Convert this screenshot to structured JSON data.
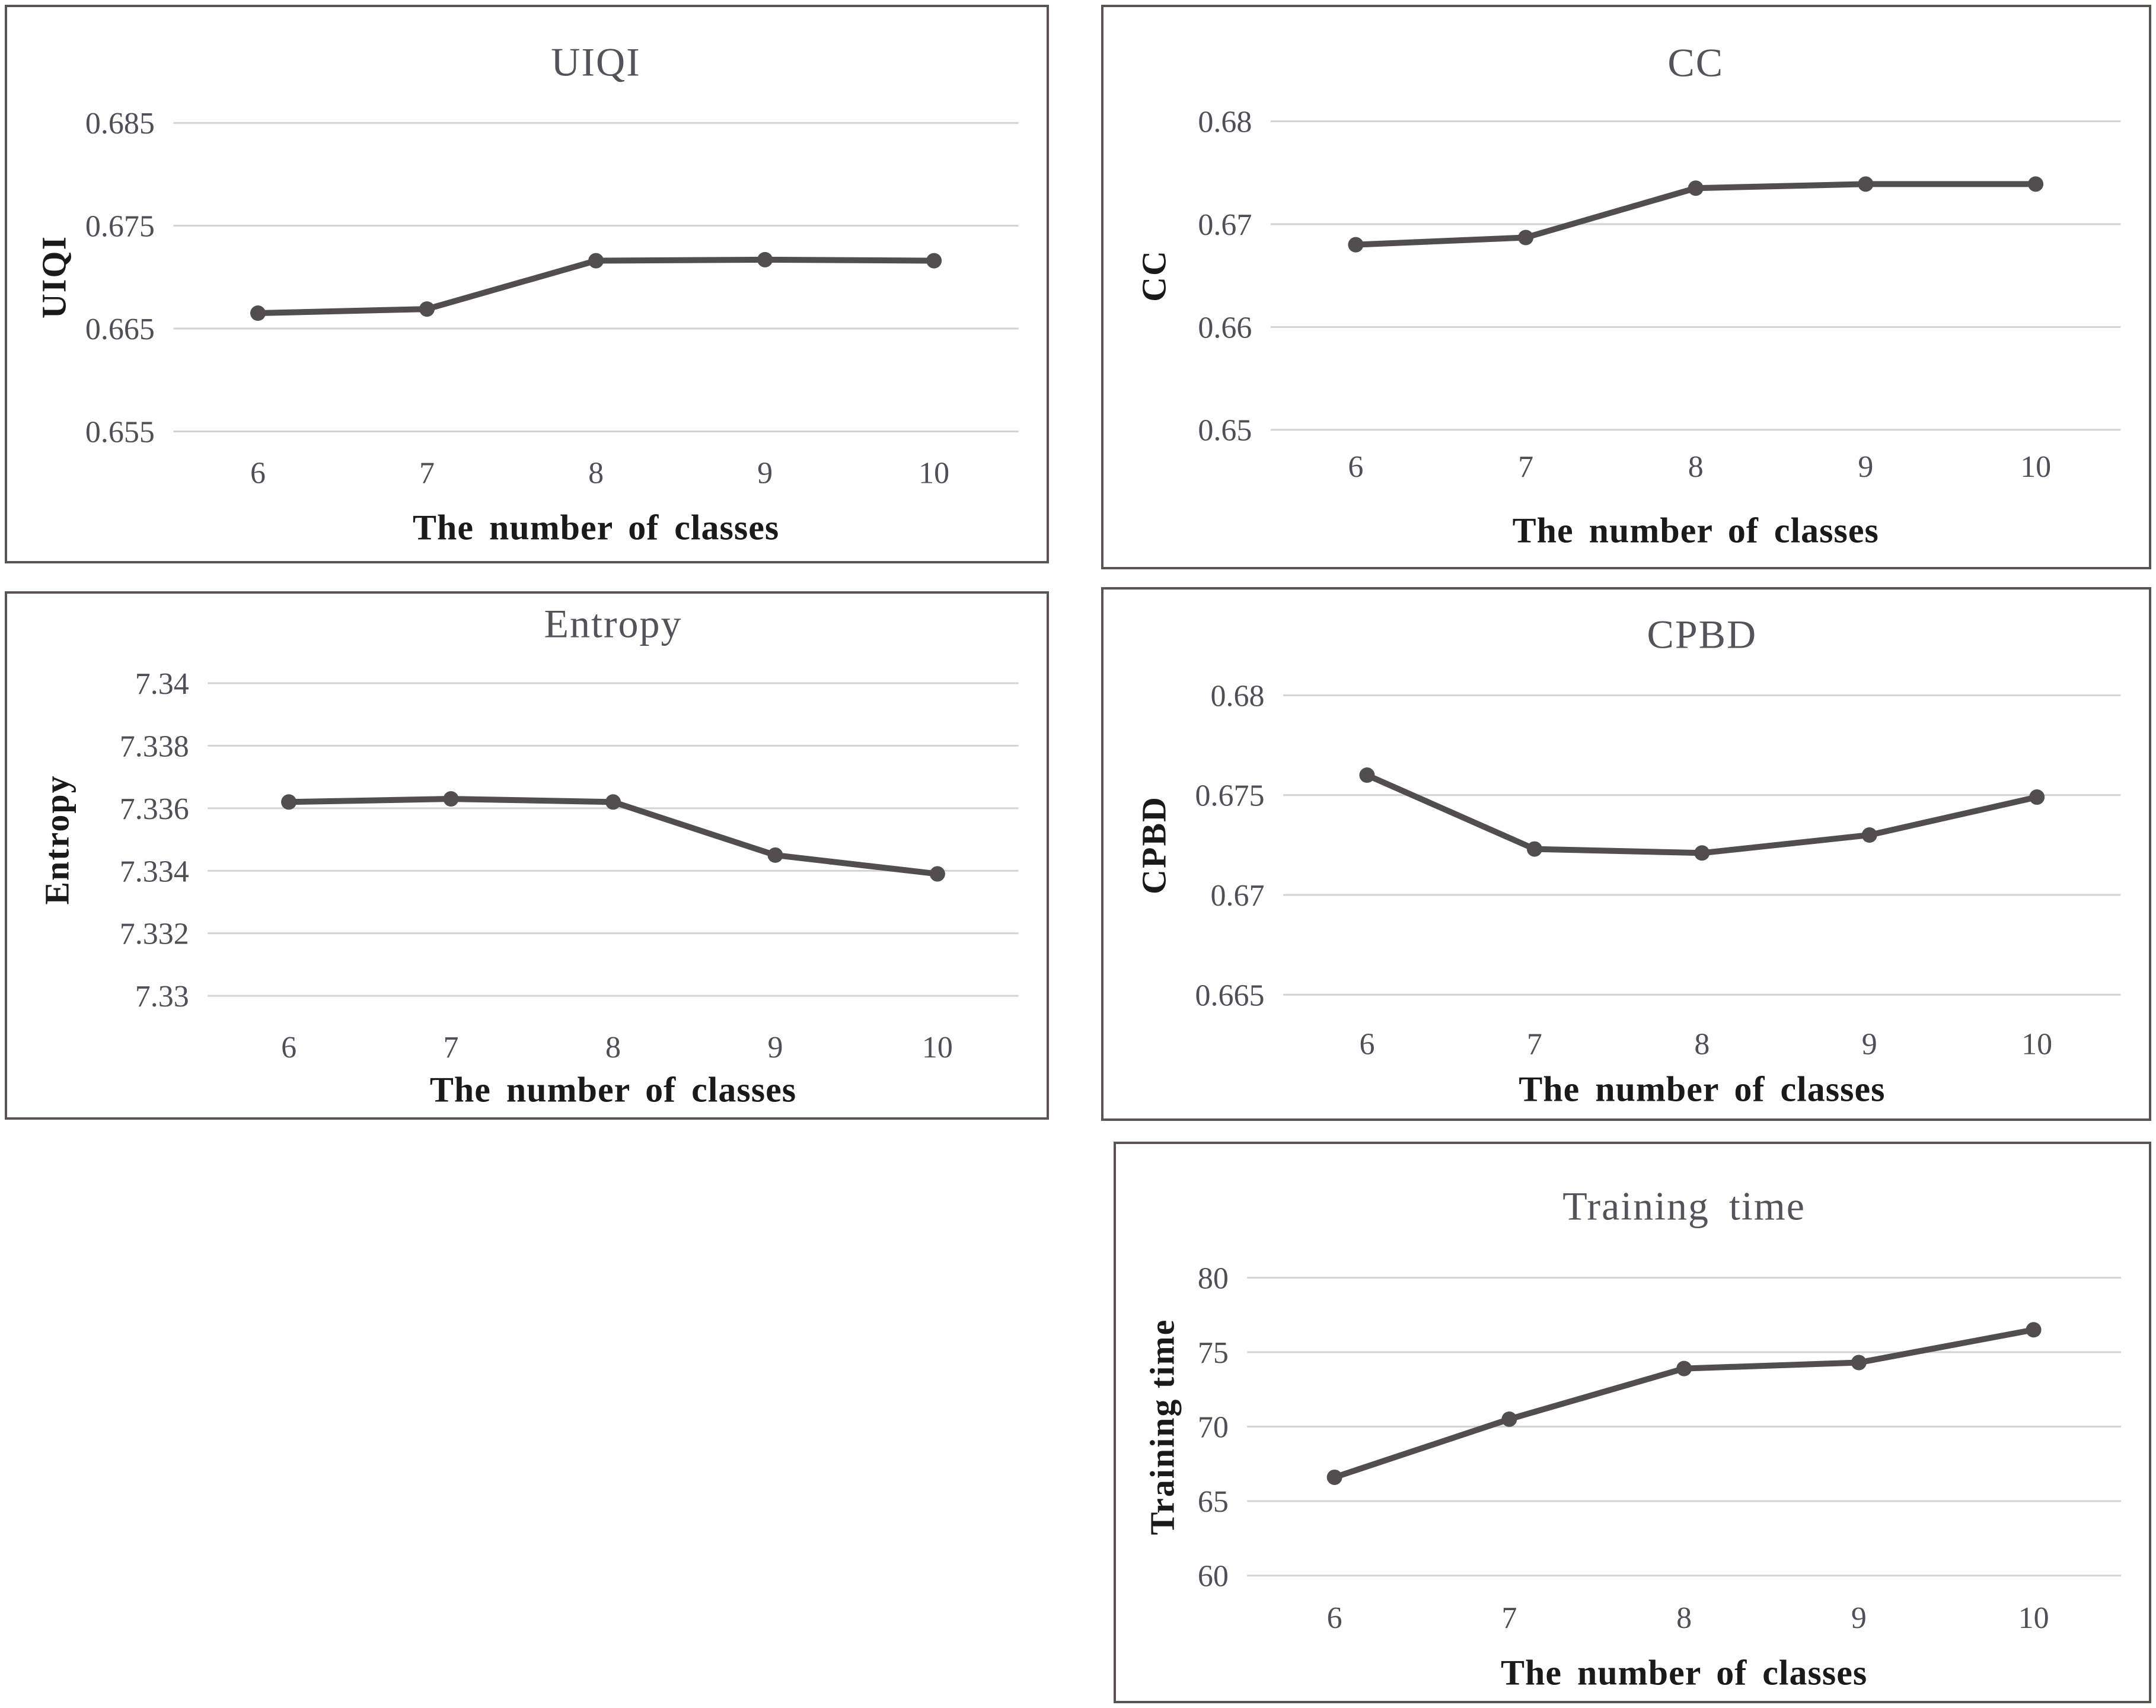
{
  "page": {
    "background": "#ffffff",
    "description": "Five line charts evaluating metrics versus the number of classes"
  },
  "style": {
    "line_color": "#504e4e",
    "marker_color": "#504e4e",
    "grid_color": "#d2d2d7",
    "panel_border_color": "#5b5351",
    "tick_label_color": "#524e57",
    "chart_title_color": "#56525a",
    "axis_title_color": "#1a1a1a"
  },
  "chart_data": [
    {
      "type": "line",
      "title": "UIQI",
      "xlabel": "The number of classes",
      "ylabel": "UIQI",
      "categories": [
        "6",
        "7",
        "8",
        "9",
        "10"
      ],
      "values": [
        0.6665,
        0.6669,
        0.6716,
        0.6717,
        0.6716
      ],
      "ymin": 0.655,
      "ymax": 0.685,
      "yticks": [
        {
          "value": 0.685,
          "label": "0.685"
        },
        {
          "value": 0.675,
          "label": "0.675"
        },
        {
          "value": 0.665,
          "label": "0.665"
        },
        {
          "value": 0.655,
          "label": "0.655"
        }
      ],
      "grid": true,
      "legend": "none"
    },
    {
      "type": "line",
      "title": "CC",
      "xlabel": "The number of classes",
      "ylabel": "CC",
      "categories": [
        "6",
        "7",
        "8",
        "9",
        "10"
      ],
      "values": [
        0.668,
        0.6687,
        0.6735,
        0.6739,
        0.6739
      ],
      "ymin": 0.65,
      "ymax": 0.68,
      "yticks": [
        {
          "value": 0.68,
          "label": "0.68"
        },
        {
          "value": 0.67,
          "label": "0.67"
        },
        {
          "value": 0.66,
          "label": "0.66"
        },
        {
          "value": 0.65,
          "label": "0.65"
        }
      ],
      "grid": true,
      "legend": "none"
    },
    {
      "type": "line",
      "title": "Entropy",
      "xlabel": "The number of classes",
      "ylabel": "Entropy",
      "categories": [
        "6",
        "7",
        "8",
        "9",
        "10"
      ],
      "values": [
        7.3362,
        7.3363,
        7.3362,
        7.3345,
        7.3339
      ],
      "ymin": 7.33,
      "ymax": 7.34,
      "yticks": [
        {
          "value": 7.34,
          "label": "7.34"
        },
        {
          "value": 7.338,
          "label": "7.338"
        },
        {
          "value": 7.336,
          "label": "7.336"
        },
        {
          "value": 7.334,
          "label": "7.334"
        },
        {
          "value": 7.332,
          "label": "7.332"
        },
        {
          "value": 7.33,
          "label": "7.33"
        }
      ],
      "grid": true,
      "legend": "none"
    },
    {
      "type": "line",
      "title": "CPBD",
      "xlabel": "The number of classes",
      "ylabel": "CPBD",
      "categories": [
        "6",
        "7",
        "8",
        "9",
        "10"
      ],
      "values": [
        0.676,
        0.6723,
        0.6721,
        0.673,
        0.6749
      ],
      "ymin": 0.665,
      "ymax": 0.68,
      "yticks": [
        {
          "value": 0.68,
          "label": "0.68"
        },
        {
          "value": 0.675,
          "label": "0.675"
        },
        {
          "value": 0.67,
          "label": "0.67"
        },
        {
          "value": 0.665,
          "label": "0.665"
        }
      ],
      "grid": true,
      "legend": "none"
    },
    {
      "type": "line",
      "title": "Training time",
      "xlabel": "The number of classes",
      "ylabel": "Training time",
      "categories": [
        "6",
        "7",
        "8",
        "9",
        "10"
      ],
      "values": [
        66.6,
        70.5,
        73.9,
        74.3,
        76.5
      ],
      "ymin": 60,
      "ymax": 80,
      "yticks": [
        {
          "value": 80,
          "label": "80"
        },
        {
          "value": 75,
          "label": "75"
        },
        {
          "value": 70,
          "label": "70"
        },
        {
          "value": 65,
          "label": "65"
        },
        {
          "value": 60,
          "label": "60"
        }
      ],
      "grid": true,
      "legend": "none"
    }
  ]
}
